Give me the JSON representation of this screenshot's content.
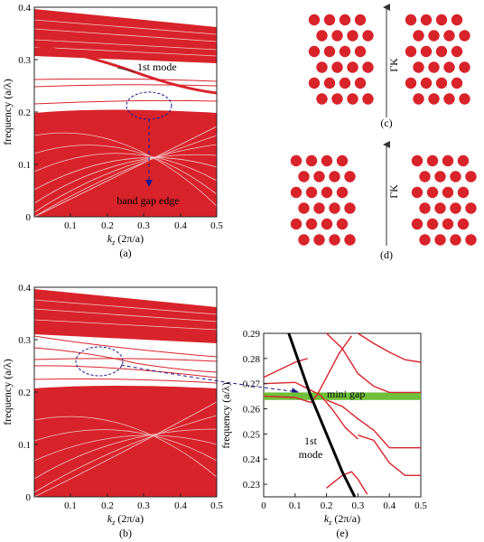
{
  "panel_a": {
    "label": "(a)",
    "ylabel": "frequency (a/λ)",
    "xlabel_main": "k",
    "xlabel_sub": "z",
    "xlabel_rest": " (2π/a)",
    "xticks": [
      "0.1",
      "0.2",
      "0.3",
      "0.4",
      "0.5"
    ],
    "yticks": [
      "0",
      "0.1",
      "0.2",
      "0.3",
      "0.4"
    ],
    "annotation_mode": "1st mode",
    "annotation_gap": "band gap edge"
  },
  "panel_b": {
    "label": "(b)",
    "ylabel": "frequency (a/λ)",
    "xlabel_main": "k",
    "xlabel_sub": "z",
    "xlabel_rest": " (2π/a)",
    "xticks": [
      "0.1",
      "0.2",
      "0.3",
      "0.4",
      "0.5"
    ],
    "yticks": [
      "0",
      "0.1",
      "0.2",
      "0.3",
      "0.4"
    ]
  },
  "panel_c": {
    "label": "(c)",
    "direction": "ΓK"
  },
  "panel_d": {
    "label": "(d)",
    "direction": "ΓK"
  },
  "panel_e": {
    "label": "(e)",
    "ylabel": "frequency (a/λ)",
    "xlabel_main": "k",
    "xlabel_sub": "z",
    "xlabel_rest": " (2π/a)",
    "xticks": [
      "0",
      "0.1",
      "0.2",
      "0.3",
      "0.4",
      "0.5"
    ],
    "yticks": [
      "0.23",
      "0.24",
      "0.25",
      "0.26",
      "0.27",
      "0.28",
      "0.29"
    ],
    "annotation_gap": "mini gap",
    "annotation_mode_1": "1st",
    "annotation_mode_2": "mode"
  },
  "colors": {
    "band": "#d8232a",
    "gap": "#6fbf3a",
    "arrow": "#1a1a8c",
    "mode": "#000000"
  },
  "chart_data": [
    {
      "type": "line",
      "panel": "a",
      "xlabel": "kz (2π/a)",
      "ylabel": "frequency (a/λ)",
      "xlim": [
        0,
        0.5
      ],
      "ylim": [
        0,
        0.4
      ],
      "series": [
        {
          "name": "1st mode",
          "x": [
            0.0,
            0.1,
            0.2,
            0.3,
            0.4,
            0.5
          ],
          "y": [
            0.325,
            0.3,
            0.275,
            0.25,
            0.235,
            0.23
          ]
        }
      ],
      "bands": [
        {
          "y_low": 0.3,
          "y_high": 0.385
        },
        {
          "y_low": 0.0,
          "y_high": 0.2
        }
      ]
    },
    {
      "type": "line",
      "panel": "b",
      "xlabel": "kz (2π/a)",
      "ylabel": "frequency (a/λ)",
      "xlim": [
        0,
        0.5
      ],
      "ylim": [
        0,
        0.4
      ],
      "bands": [
        {
          "y_low": 0.3,
          "y_high": 0.385
        },
        {
          "y_low": 0.0,
          "y_high": 0.2
        }
      ]
    },
    {
      "type": "line",
      "panel": "e",
      "xlabel": "kz (2π/a)",
      "ylabel": "frequency (a/λ)",
      "xlim": [
        0,
        0.5
      ],
      "ylim": [
        0.225,
        0.29
      ],
      "series": [
        {
          "name": "1st mode",
          "x": [
            0.08,
            0.15,
            0.2,
            0.25,
            0.29
          ],
          "y": [
            0.29,
            0.265,
            0.25,
            0.235,
            0.225
          ]
        }
      ],
      "mini_gap": [
        0.2635,
        0.2665
      ]
    }
  ]
}
